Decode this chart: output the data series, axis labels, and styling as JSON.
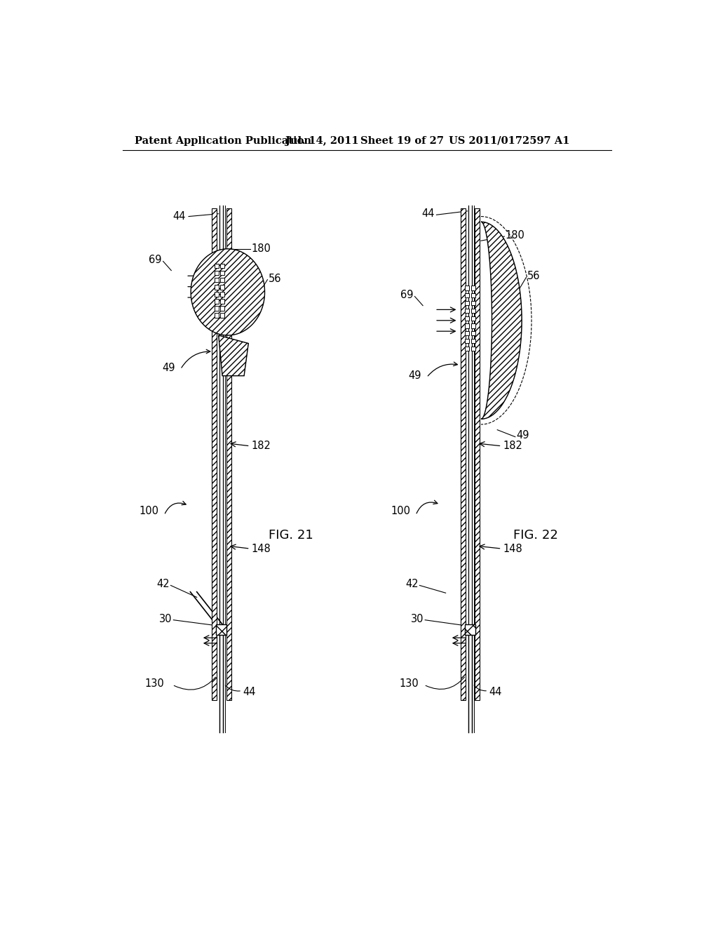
{
  "bg_color": "#ffffff",
  "header_text": "Patent Application Publication",
  "header_date": "Jul. 14, 2011",
  "header_sheet": "Sheet 19 of 27",
  "header_patent": "US 2011/0172597 A1",
  "fig21_label": "FIG. 21",
  "fig22_label": "FIG. 22",
  "line_color": "#000000",
  "label_fontsize": 10.5,
  "header_fontsize": 10.5
}
